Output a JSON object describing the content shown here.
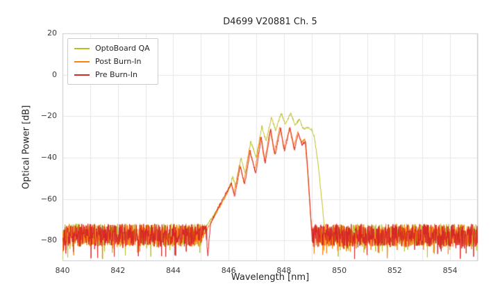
{
  "chart_data": {
    "type": "line",
    "title": "D4699 V20881 Ch. 5",
    "xlabel": "Wavelength [nm]",
    "ylabel": "Optical Power [dB]",
    "xlim": [
      840,
      855
    ],
    "ylim": [
      -90,
      20
    ],
    "x_ticks": [
      840,
      842,
      844,
      846,
      848,
      850,
      852,
      854
    ],
    "y_ticks": [
      20,
      0,
      -20,
      -40,
      -60,
      -80
    ],
    "grid": true,
    "legend_position": "upper left",
    "noise_floor": {
      "mean": -77.5,
      "half_spread": 5.5,
      "deep_spike_prob": 0.1,
      "deep_spike_depth": 7
    },
    "series": [
      {
        "name": "OptoBoard QA",
        "color": "#bcbd22",
        "seed": 7,
        "envelope": [
          [
            845.0,
            -80
          ],
          [
            845.2,
            -73
          ],
          [
            845.45,
            -68
          ],
          [
            845.7,
            -63
          ],
          [
            845.9,
            -58
          ],
          [
            846.05,
            -54
          ],
          [
            846.15,
            -49
          ],
          [
            846.25,
            -54
          ],
          [
            846.45,
            -40
          ],
          [
            846.6,
            -48
          ],
          [
            846.8,
            -32
          ],
          [
            847.0,
            -40
          ],
          [
            847.2,
            -25
          ],
          [
            847.35,
            -32
          ],
          [
            847.55,
            -20.5
          ],
          [
            847.7,
            -27
          ],
          [
            847.9,
            -18.5
          ],
          [
            848.05,
            -24
          ],
          [
            848.25,
            -18.5
          ],
          [
            848.4,
            -24.5
          ],
          [
            848.55,
            -21.5
          ],
          [
            848.7,
            -26
          ],
          [
            848.85,
            -25.5
          ],
          [
            849.0,
            -26.5
          ],
          [
            849.1,
            -30
          ],
          [
            849.25,
            -45
          ],
          [
            849.4,
            -65
          ],
          [
            849.5,
            -80
          ]
        ]
      },
      {
        "name": "Post Burn-In",
        "color": "#ff7f0e",
        "seed": 13,
        "envelope": [
          [
            845.0,
            -81
          ],
          [
            845.25,
            -74
          ],
          [
            845.5,
            -68
          ],
          [
            845.75,
            -62
          ],
          [
            845.95,
            -57
          ],
          [
            846.1,
            -52
          ],
          [
            846.2,
            -57
          ],
          [
            846.4,
            -43
          ],
          [
            846.55,
            -52
          ],
          [
            846.75,
            -36
          ],
          [
            846.95,
            -46
          ],
          [
            847.15,
            -29.5
          ],
          [
            847.3,
            -42
          ],
          [
            847.5,
            -26.5
          ],
          [
            847.65,
            -38
          ],
          [
            847.85,
            -25.5
          ],
          [
            848.0,
            -36
          ],
          [
            848.2,
            -25.5
          ],
          [
            848.35,
            -35
          ],
          [
            848.5,
            -27.5
          ],
          [
            848.62,
            -33
          ],
          [
            848.75,
            -31
          ],
          [
            848.85,
            -46
          ],
          [
            848.95,
            -66
          ],
          [
            849.05,
            -80
          ]
        ]
      },
      {
        "name": "Pre Burn-In",
        "color": "#d62728",
        "seed": 29,
        "envelope": [
          [
            845.0,
            -80
          ],
          [
            845.15,
            -73
          ],
          [
            845.25,
            -87.5
          ],
          [
            845.35,
            -72
          ],
          [
            845.55,
            -66
          ],
          [
            845.75,
            -61
          ],
          [
            845.95,
            -56
          ],
          [
            846.1,
            -52.5
          ],
          [
            846.22,
            -59
          ],
          [
            846.42,
            -44
          ],
          [
            846.58,
            -53
          ],
          [
            846.78,
            -37
          ],
          [
            846.98,
            -48
          ],
          [
            847.18,
            -30
          ],
          [
            847.32,
            -43
          ],
          [
            847.52,
            -26.5
          ],
          [
            847.68,
            -39
          ],
          [
            847.88,
            -25.5
          ],
          [
            848.02,
            -37
          ],
          [
            848.22,
            -25.5
          ],
          [
            848.38,
            -36
          ],
          [
            848.52,
            -28
          ],
          [
            848.65,
            -34
          ],
          [
            848.78,
            -32
          ],
          [
            848.88,
            -50
          ],
          [
            848.97,
            -70
          ],
          [
            849.02,
            -80
          ]
        ]
      }
    ],
    "style": {
      "grid_color": "#e6e6e6",
      "border_color": "#cccccc",
      "background": "#ffffff"
    }
  }
}
